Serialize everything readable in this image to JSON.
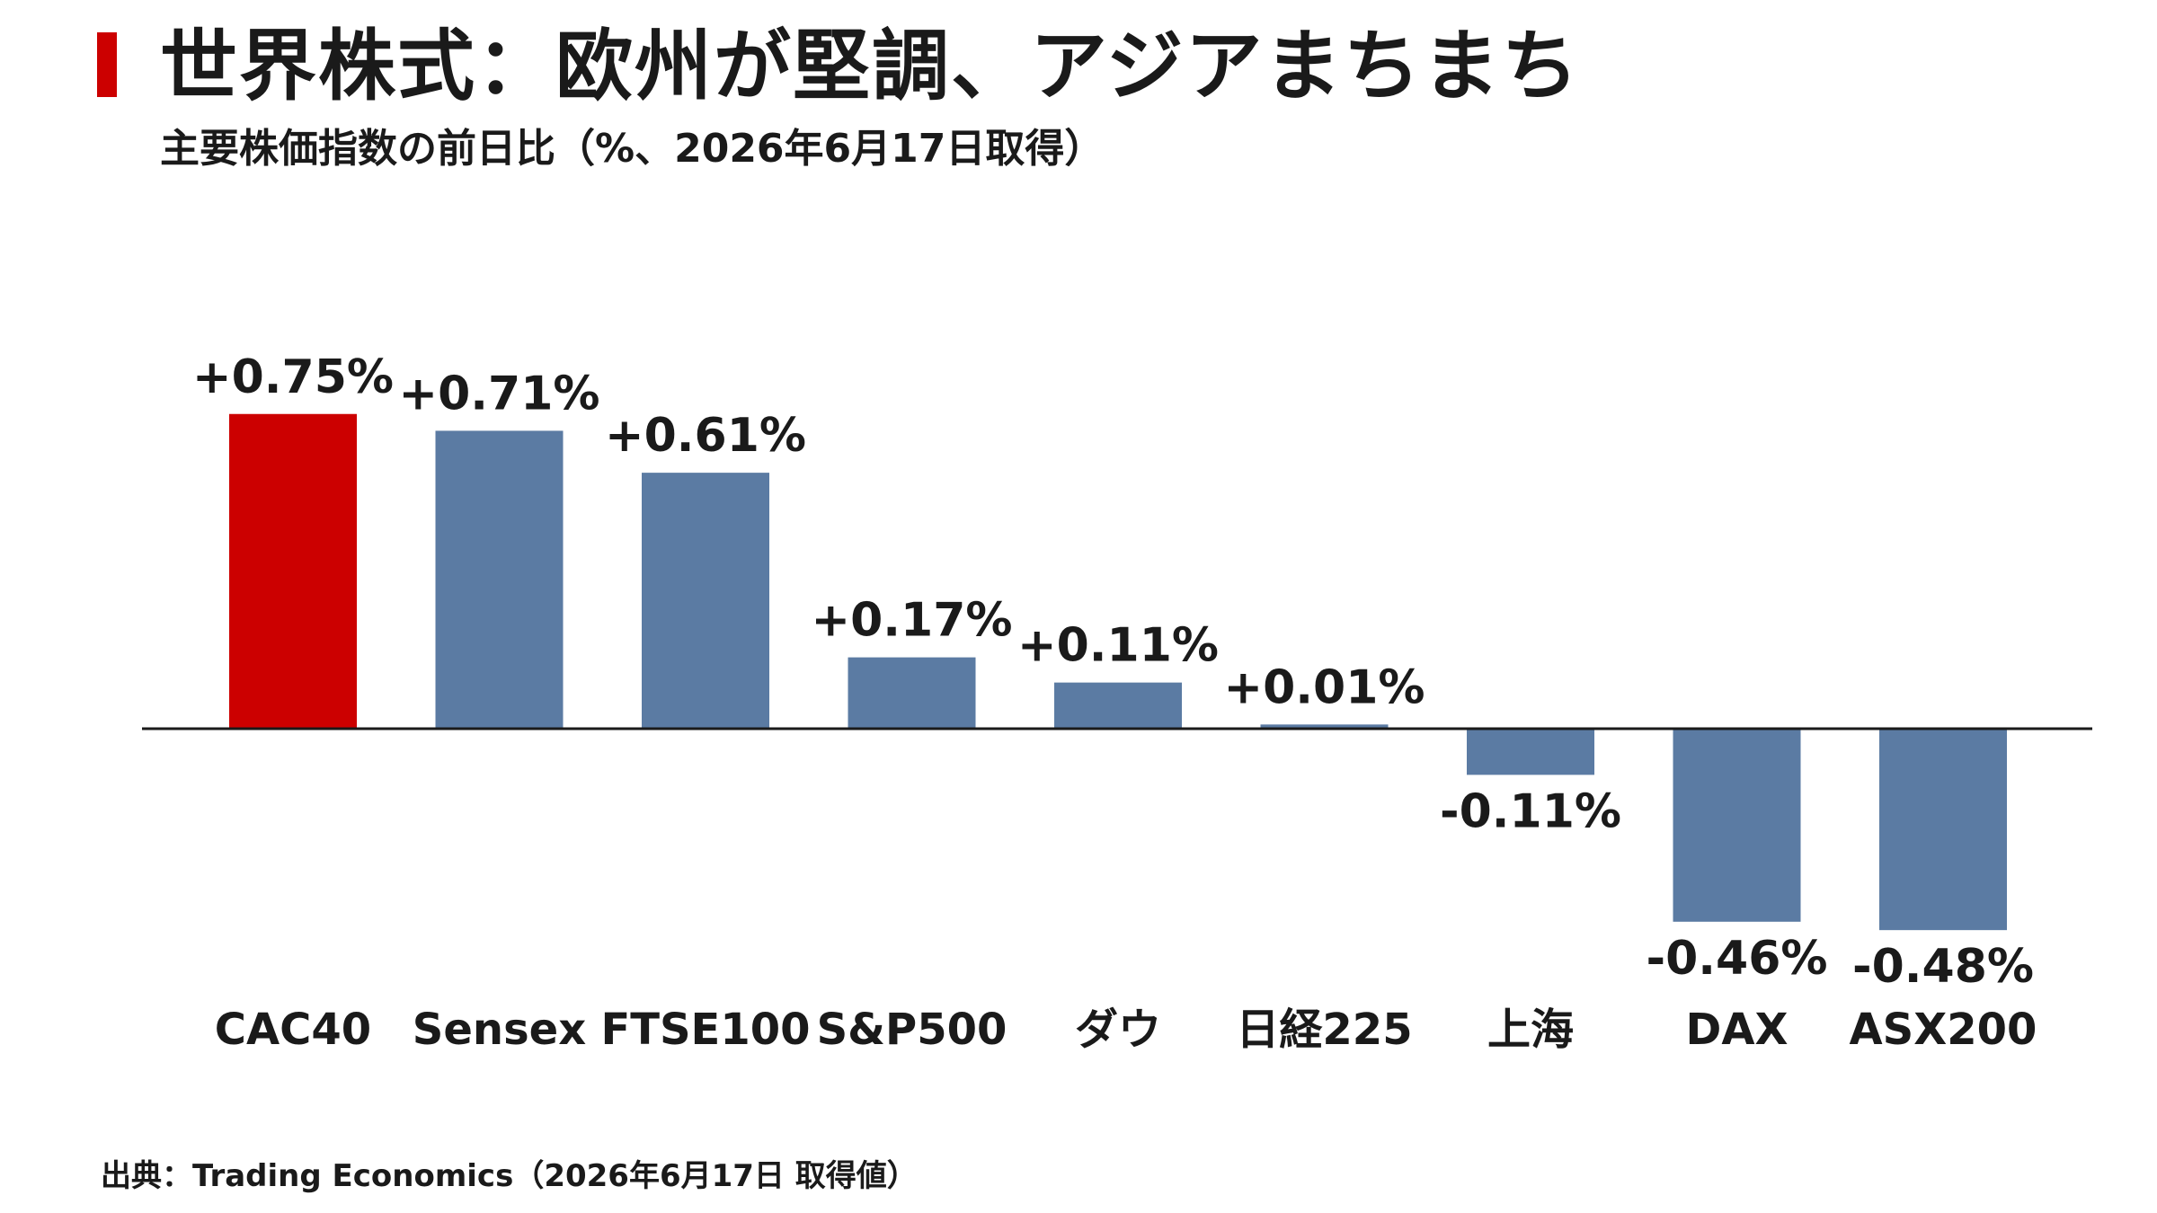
{
  "title": "世界株式：欧州が堅調、アジアまちまち",
  "subtitle": "主要株価指数の前日比（%、2026年6月17日取得）",
  "source": "出典：Trading Economics（2026年6月17日 取得値）",
  "colors": {
    "accent": "#cc0000",
    "bar_default": "#5b7ba3",
    "bar_highlight": "#cc0000",
    "baseline": "#1a1a1a",
    "text": "#1a1a1a"
  },
  "chart_data": {
    "type": "bar",
    "title": "世界株式：欧州が堅調、アジアまちまち",
    "subtitle": "主要株価指数の前日比（%、2026年6月17日取得）",
    "xlabel": "",
    "ylabel": "",
    "ylim": [
      -0.75,
      0.9
    ],
    "grid": false,
    "legend": "none",
    "categories": [
      "CAC40",
      "Sensex",
      "FTSE100",
      "S&P500",
      "ダウ",
      "日経225",
      "上海",
      "DAX",
      "ASX200"
    ],
    "values": [
      0.75,
      0.71,
      0.61,
      0.17,
      0.11,
      0.01,
      -0.11,
      -0.46,
      -0.48
    ],
    "data_labels": [
      "+0.75%",
      "+0.71%",
      "+0.61%",
      "+0.17%",
      "+0.11%",
      "+0.01%",
      "-0.11%",
      "-0.46%",
      "-0.48%"
    ],
    "highlight_index": 0
  }
}
